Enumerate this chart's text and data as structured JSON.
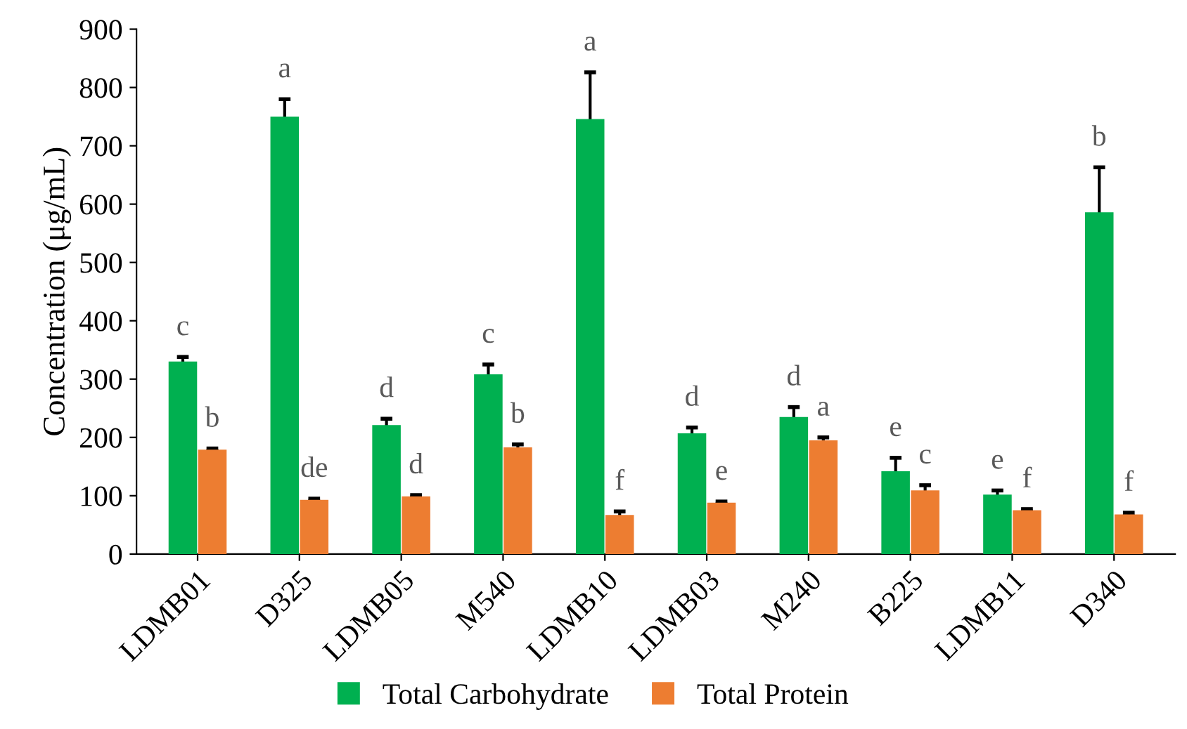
{
  "chart_data": {
    "type": "bar",
    "ylabel": "Concentration (μg/mL)",
    "categories": [
      "LDMB01",
      "D325",
      "LDMB05",
      "M540",
      "LDMB10",
      "LDMB03",
      "M240",
      "B225",
      "LDMB11",
      "D340"
    ],
    "series": [
      {
        "name": "Total Carbohydrate",
        "color": "#00b050",
        "values": [
          330,
          750,
          221,
          308,
          746,
          207,
          235,
          142,
          102,
          586
        ],
        "errors": [
          8,
          30,
          11,
          17,
          80,
          10,
          17,
          23,
          7,
          77
        ]
      },
      {
        "name": "Total Protein",
        "color": "#ed7d31",
        "values": [
          179,
          93,
          99,
          183,
          67,
          88,
          195,
          109,
          75,
          68
        ],
        "errors": [
          2,
          2,
          2,
          5,
          6,
          2,
          5,
          9,
          2,
          3
        ]
      }
    ],
    "ylim": [
      0,
      900
    ],
    "yticks": [
      0,
      100,
      200,
      300,
      400,
      500,
      600,
      700,
      800,
      900
    ],
    "grid": false,
    "legend": "bottom",
    "annotations": [
      "c",
      "b",
      "a",
      "de",
      "d",
      "d",
      "c",
      "b",
      "a",
      "f",
      "d",
      "e",
      "d",
      "a",
      "e",
      "c",
      "e",
      "f",
      "b",
      "f"
    ]
  }
}
